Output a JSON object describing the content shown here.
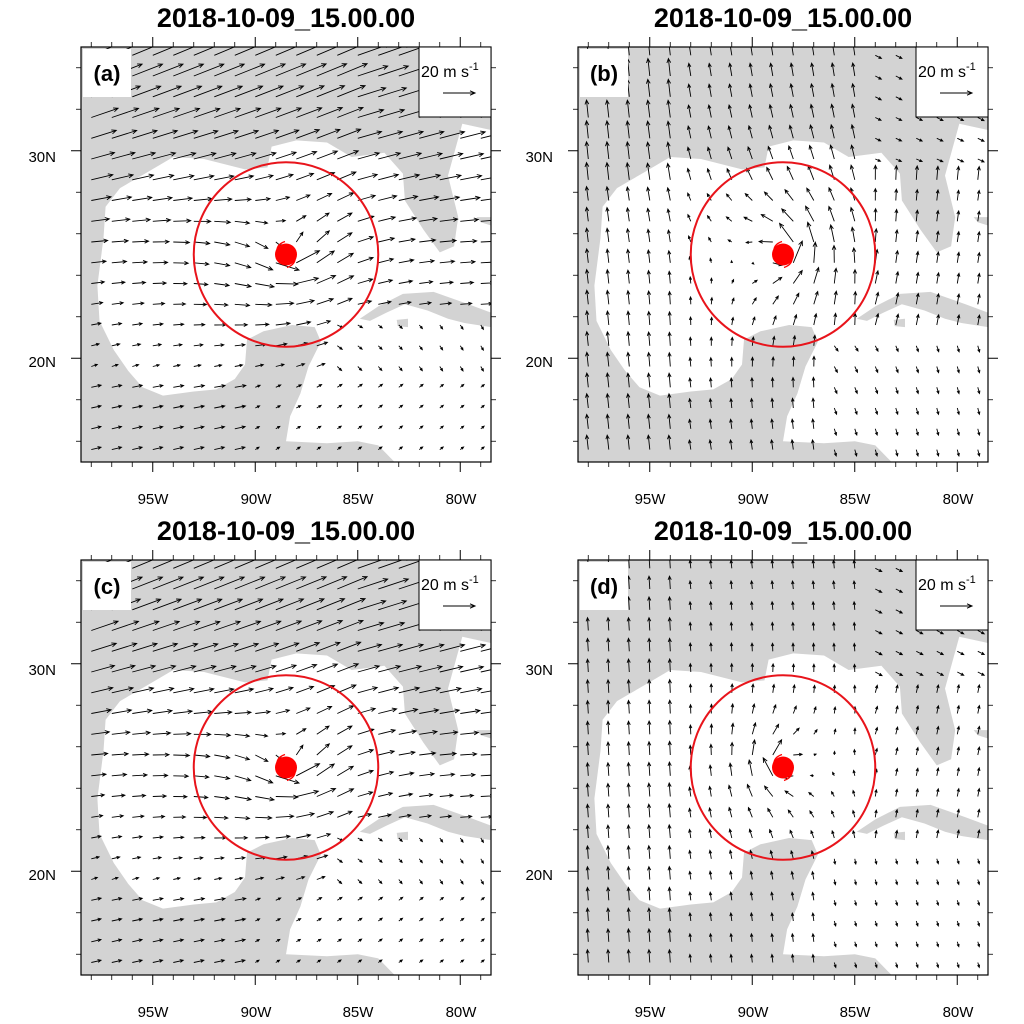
{
  "panels": [
    {
      "id": "a",
      "title": "2018-10-09_15.00.00",
      "label": "(a)",
      "flow": "westerly-strong"
    },
    {
      "id": "b",
      "title": "2018-10-09_15.00.00",
      "label": "(b)",
      "flow": "southerly"
    },
    {
      "id": "c",
      "title": "2018-10-09_15.00.00",
      "label": "(c)",
      "flow": "westerly-strong"
    },
    {
      "id": "d",
      "title": "2018-10-09_15.00.00",
      "label": "(d)",
      "flow": "southerly-weak"
    }
  ],
  "reference_vector": {
    "label": "20 m s",
    "exponent": "-1",
    "speed": 20
  },
  "axes": {
    "lon_ticks": [
      "95W",
      "90W",
      "85W",
      "80W"
    ],
    "lat_ticks": [
      "30N",
      "20N"
    ],
    "lon_range": [
      -98.5,
      -78.5
    ],
    "lat_range": [
      15,
      35
    ]
  },
  "storm": {
    "lon": -88.5,
    "lat": 25,
    "radius_deg": 4.5
  },
  "colors": {
    "land": "#d3d3d3",
    "ocean": "#ffffff",
    "circle": "#e8141b",
    "storm_marker": "#ff0000",
    "vector": "#000000"
  }
}
